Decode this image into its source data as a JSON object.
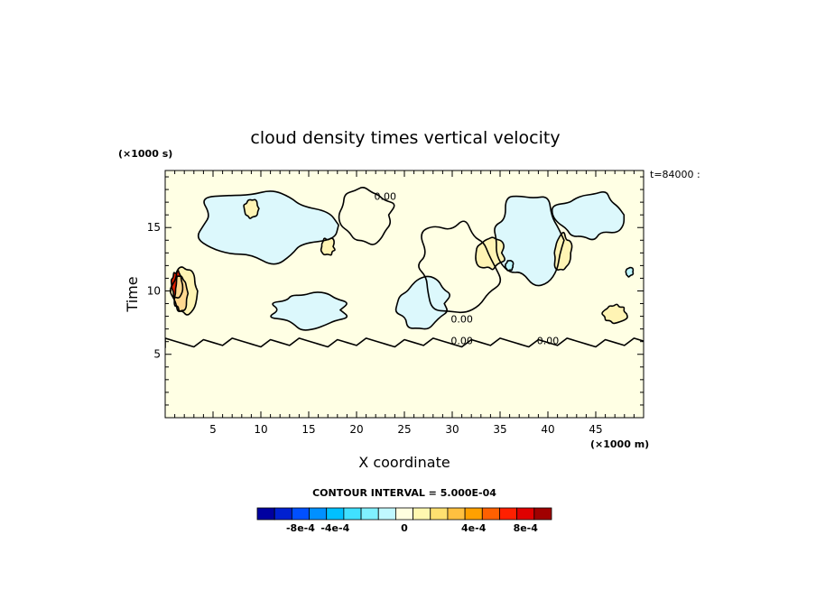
{
  "chart_data": {
    "type": "heatmap",
    "title": "cloud density times vertical velocity",
    "xlabel": "X coordinate",
    "ylabel": "Time",
    "x_unit": "(×1000 m)",
    "y_unit": "(×1000 s)",
    "time_stamp": "t=84000 :",
    "xlim": [
      0,
      50
    ],
    "ylim": [
      0,
      19.5
    ],
    "x_ticks": [
      5,
      10,
      15,
      20,
      25,
      30,
      35,
      40,
      45
    ],
    "y_ticks": [
      5,
      10,
      15
    ],
    "contour_interval_text": "CONTOUR INTERVAL = 5.000E-04",
    "contour_labels": [
      {
        "text": "0.00",
        "x": 23,
        "y": 17.2
      },
      {
        "text": "0.00",
        "x": 31,
        "y": 7.5
      },
      {
        "text": "0.00",
        "x": 31,
        "y": 5.8
      },
      {
        "text": "0.00",
        "x": 40,
        "y": 5.8
      }
    ],
    "quiet_region": {
      "y_from": 0,
      "y_to": 5.5,
      "level": 0
    },
    "background_level_above": 0,
    "features": [
      {
        "x": 10,
        "y": 15.2,
        "w": 14.5,
        "h": 6.0,
        "level": -1
      },
      {
        "x": 21.2,
        "y": 16.0,
        "w": 5.6,
        "h": 4.5,
        "level": 0
      },
      {
        "x": 30.5,
        "y": 12.0,
        "w": 9.0,
        "h": 7.0,
        "level": 0
      },
      {
        "x": 37.8,
        "y": 14.0,
        "w": 8.0,
        "h": 7.0,
        "level": -1
      },
      {
        "x": 44.2,
        "y": 16.0,
        "w": 7.0,
        "h": 4.0,
        "level": -1
      },
      {
        "x": 27.0,
        "y": 9.0,
        "w": 6.0,
        "h": 4.0,
        "level": -1
      },
      {
        "x": 15.0,
        "y": 8.5,
        "w": 8.0,
        "h": 3.0,
        "level": -1
      },
      {
        "x": 2.0,
        "y": 10.0,
        "w": 3.0,
        "h": 4.0,
        "level": 1
      },
      {
        "x": 1.2,
        "y": 10.5,
        "w": 1.2,
        "h": 2.2,
        "level": 4
      },
      {
        "x": 1.6,
        "y": 9.8,
        "w": 1.4,
        "h": 2.8,
        "level": 2
      },
      {
        "x": 34.0,
        "y": 13.0,
        "w": 3.0,
        "h": 3.0,
        "level": 1
      },
      {
        "x": 41.5,
        "y": 13.0,
        "w": 2.0,
        "h": 3.0,
        "level": 1
      },
      {
        "x": 47.0,
        "y": 8.2,
        "w": 2.5,
        "h": 1.6,
        "level": 1
      },
      {
        "x": 9.0,
        "y": 16.5,
        "w": 1.5,
        "h": 1.5,
        "level": 1
      },
      {
        "x": 17.0,
        "y": 13.5,
        "w": 1.5,
        "h": 1.5,
        "level": 1
      },
      {
        "x": 36.0,
        "y": 12.0,
        "w": 0.8,
        "h": 0.8,
        "level": -2
      },
      {
        "x": 48.5,
        "y": 11.5,
        "w": 0.8,
        "h": 0.8,
        "level": -2
      }
    ],
    "colorbar": {
      "colors": [
        "#0000a0",
        "#0020d0",
        "#0050ff",
        "#0090ff",
        "#00c0ff",
        "#40e0ff",
        "#80f0ff",
        "#c0f8ff",
        "#ffffe0",
        "#fff8b0",
        "#ffe070",
        "#ffc040",
        "#ffa000",
        "#ff6000",
        "#ff2000",
        "#e00000",
        "#a00000"
      ],
      "labels": [
        "-8e-4",
        "-4e-4",
        "0",
        "4e-4",
        "8e-4"
      ]
    },
    "level_colors": {
      "-2": "#c0f8ff",
      "-1": "#dcf8fc",
      "0": "#ffffe4",
      "1": "#fff4b4",
      "2": "#ffd890",
      "3": "#ff9a30",
      "4": "#e02000"
    }
  }
}
